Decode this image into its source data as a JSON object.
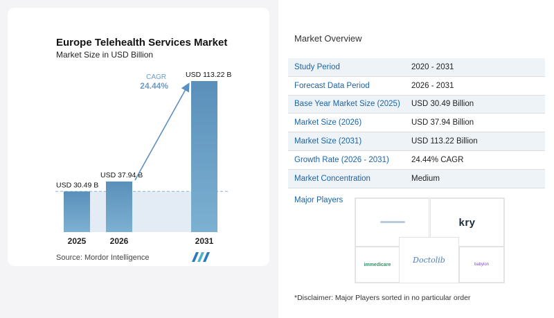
{
  "chart_data": {
    "type": "bar",
    "title": "Europe Telehealth Services Market",
    "subtitle": "Market Size in USD Billion",
    "categories": [
      "2025",
      "2026",
      "2031"
    ],
    "values": [
      30.49,
      37.94,
      113.22
    ],
    "value_labels": [
      "USD 30.49 B",
      "USD 37.94 B",
      "USD 113.22 B"
    ],
    "cagr_label": "CAGR",
    "cagr_value": "24.44%",
    "colors": {
      "bar": "#6b9ec4",
      "bar_top": "#5288b5",
      "shade": "#e3ecf4",
      "arrow": "#5b8fbf",
      "cagr": "#6a9ac6"
    }
  },
  "source": "Source:  Mordor Intelligence",
  "overview": {
    "title": "Market Overview",
    "rows": [
      {
        "label": "Study Period",
        "value": "2020 - 2031"
      },
      {
        "label": "Forecast Data Period",
        "value": "2026 - 2031"
      },
      {
        "label": "Base Year Market Size (2025)",
        "value": "USD 30.49 Billion"
      },
      {
        "label": "Market Size (2026)",
        "value": "USD 37.94 Billion"
      },
      {
        "label": "Market Size (2031)",
        "value": "USD 113.22 Billion"
      },
      {
        "label": "Growth Rate (2026 - 2031)",
        "value": "24.44% CAGR"
      },
      {
        "label": "Market Concentration",
        "value": "Medium"
      }
    ]
  },
  "players": {
    "label": "Major Players",
    "logos": [
      "kry",
      "immedicare",
      "Doctolib",
      "babylon"
    ]
  },
  "disclaimer": "*Disclaimer: Major Players sorted in no particular order"
}
